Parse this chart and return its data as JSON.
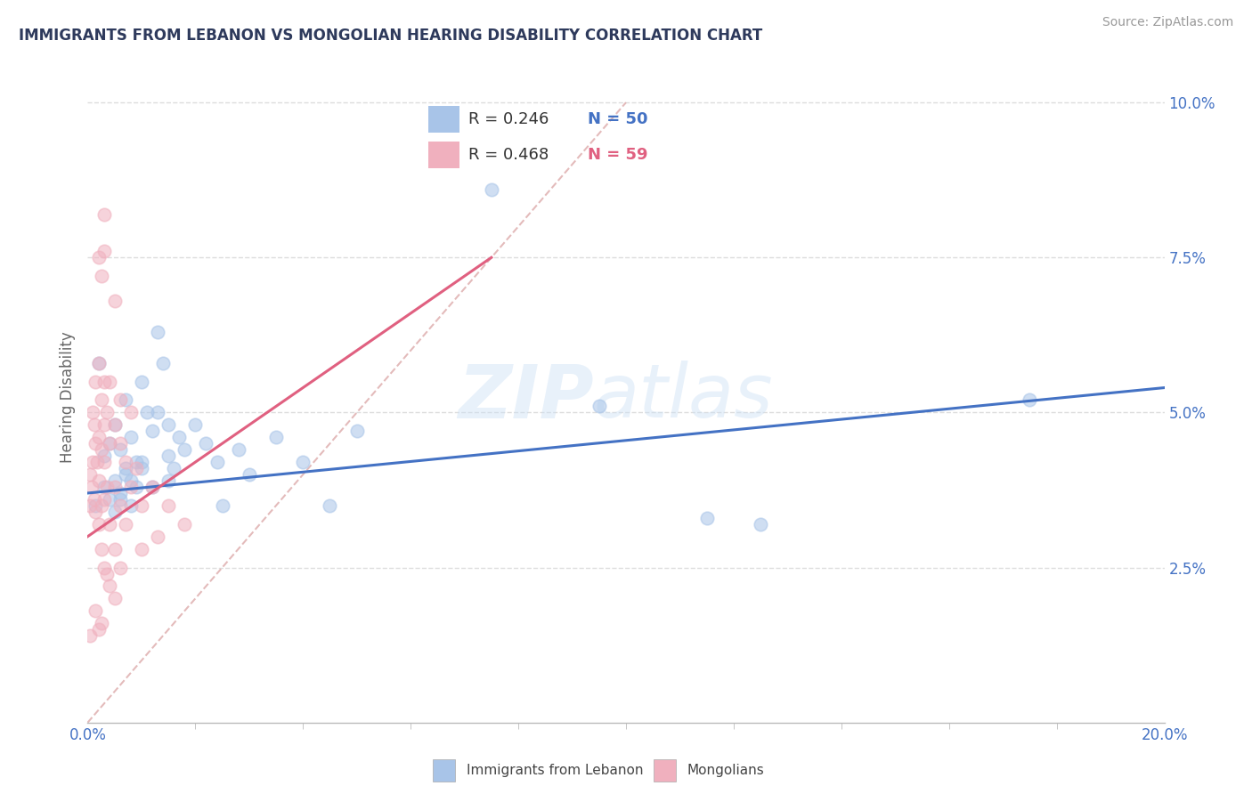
{
  "title": "IMMIGRANTS FROM LEBANON VS MONGOLIAN HEARING DISABILITY CORRELATION CHART",
  "source": "Source: ZipAtlas.com",
  "ylabel": "Hearing Disability",
  "legend_blue_r": "R = 0.246",
  "legend_blue_n": "N = 50",
  "legend_pink_r": "R = 0.468",
  "legend_pink_n": "N = 59",
  "legend_blue_label": "Immigrants from Lebanon",
  "legend_pink_label": "Mongolians",
  "watermark_zip": "ZIP",
  "watermark_atlas": "atlas",
  "blue_color": "#a8c4e8",
  "pink_color": "#f0b0be",
  "blue_line_color": "#4472c4",
  "pink_line_color": "#e06080",
  "blue_scatter": [
    [
      0.15,
      3.5
    ],
    [
      0.2,
      5.8
    ],
    [
      0.3,
      4.3
    ],
    [
      0.3,
      3.8
    ],
    [
      0.4,
      4.5
    ],
    [
      0.4,
      3.6
    ],
    [
      0.5,
      4.8
    ],
    [
      0.5,
      3.9
    ],
    [
      0.6,
      4.4
    ],
    [
      0.6,
      3.7
    ],
    [
      0.7,
      5.2
    ],
    [
      0.7,
      4.0
    ],
    [
      0.8,
      4.6
    ],
    [
      0.8,
      3.5
    ],
    [
      0.9,
      4.2
    ],
    [
      0.9,
      3.8
    ],
    [
      1.0,
      5.5
    ],
    [
      1.0,
      4.1
    ],
    [
      1.1,
      5.0
    ],
    [
      1.2,
      4.7
    ],
    [
      1.3,
      6.3
    ],
    [
      1.4,
      5.8
    ],
    [
      1.5,
      4.3
    ],
    [
      1.5,
      3.9
    ],
    [
      1.6,
      4.1
    ],
    [
      1.7,
      4.6
    ],
    [
      1.8,
      4.4
    ],
    [
      2.0,
      4.8
    ],
    [
      2.2,
      4.5
    ],
    [
      2.4,
      4.2
    ],
    [
      2.5,
      3.5
    ],
    [
      2.8,
      4.4
    ],
    [
      3.0,
      4.0
    ],
    [
      3.5,
      4.6
    ],
    [
      4.0,
      4.2
    ],
    [
      4.5,
      3.5
    ],
    [
      5.0,
      4.7
    ],
    [
      0.5,
      3.4
    ],
    [
      0.6,
      3.6
    ],
    [
      0.7,
      4.1
    ],
    [
      0.8,
      3.9
    ],
    [
      1.0,
      4.2
    ],
    [
      1.2,
      3.8
    ],
    [
      1.3,
      5.0
    ],
    [
      1.5,
      4.8
    ],
    [
      7.5,
      8.6
    ],
    [
      9.5,
      5.1
    ],
    [
      11.5,
      3.3
    ],
    [
      12.5,
      3.2
    ],
    [
      17.5,
      5.2
    ]
  ],
  "pink_scatter": [
    [
      0.05,
      4.0
    ],
    [
      0.05,
      3.5
    ],
    [
      0.08,
      3.8
    ],
    [
      0.1,
      5.0
    ],
    [
      0.1,
      4.2
    ],
    [
      0.12,
      4.8
    ],
    [
      0.12,
      3.6
    ],
    [
      0.15,
      5.5
    ],
    [
      0.15,
      4.5
    ],
    [
      0.15,
      3.4
    ],
    [
      0.18,
      4.2
    ],
    [
      0.2,
      7.5
    ],
    [
      0.2,
      5.8
    ],
    [
      0.2,
      4.6
    ],
    [
      0.2,
      3.9
    ],
    [
      0.2,
      3.2
    ],
    [
      0.25,
      7.2
    ],
    [
      0.25,
      5.2
    ],
    [
      0.25,
      4.4
    ],
    [
      0.25,
      3.5
    ],
    [
      0.25,
      2.8
    ],
    [
      0.3,
      8.2
    ],
    [
      0.3,
      7.6
    ],
    [
      0.3,
      5.5
    ],
    [
      0.3,
      4.8
    ],
    [
      0.3,
      4.2
    ],
    [
      0.3,
      3.6
    ],
    [
      0.3,
      2.5
    ],
    [
      0.35,
      5.0
    ],
    [
      0.35,
      3.8
    ],
    [
      0.35,
      2.4
    ],
    [
      0.4,
      5.5
    ],
    [
      0.4,
      4.5
    ],
    [
      0.4,
      3.2
    ],
    [
      0.4,
      2.2
    ],
    [
      0.5,
      6.8
    ],
    [
      0.5,
      4.8
    ],
    [
      0.5,
      3.8
    ],
    [
      0.5,
      2.8
    ],
    [
      0.5,
      2.0
    ],
    [
      0.6,
      5.2
    ],
    [
      0.6,
      4.5
    ],
    [
      0.6,
      3.5
    ],
    [
      0.6,
      2.5
    ],
    [
      0.7,
      4.2
    ],
    [
      0.7,
      3.2
    ],
    [
      0.8,
      5.0
    ],
    [
      0.8,
      3.8
    ],
    [
      0.9,
      4.1
    ],
    [
      1.0,
      3.5
    ],
    [
      1.0,
      2.8
    ],
    [
      1.2,
      3.8
    ],
    [
      1.3,
      3.0
    ],
    [
      1.5,
      3.5
    ],
    [
      1.8,
      3.2
    ],
    [
      0.15,
      1.8
    ],
    [
      0.2,
      1.5
    ],
    [
      0.25,
      1.6
    ],
    [
      0.05,
      1.4
    ]
  ],
  "blue_line_x": [
    0,
    20
  ],
  "blue_line_y": [
    3.7,
    5.4
  ],
  "pink_line_x": [
    0,
    7.5
  ],
  "pink_line_y": [
    3.0,
    7.5
  ],
  "diag_line_x": [
    0,
    10
  ],
  "diag_line_y": [
    0,
    10
  ],
  "xlim": [
    0,
    20
  ],
  "ylim": [
    0,
    10.5
  ],
  "title_color": "#2e3a5c",
  "source_color": "#999999",
  "axis_color": "#bbbbbb",
  "grid_color": "#dddddd",
  "diagonal_color": "#ddaaaa"
}
